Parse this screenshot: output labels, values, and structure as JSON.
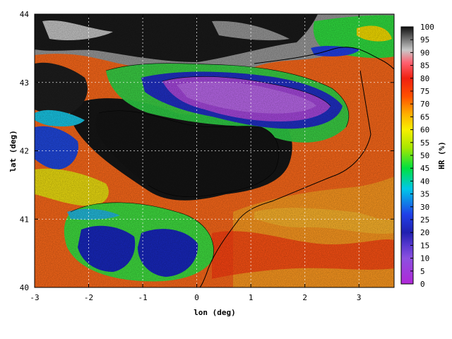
{
  "map": {
    "x_axis": {
      "label": "lon (deg)",
      "ticks": [
        "-3",
        "-2",
        "-1",
        "0",
        "1",
        "2",
        "3"
      ],
      "range": [
        -3,
        3.65
      ]
    },
    "y_axis": {
      "label": "lat (deg)",
      "ticks": [
        "40",
        "41",
        "42",
        "43",
        "44"
      ],
      "range": [
        40,
        44
      ]
    },
    "grid": "dotted, at integer degrees",
    "colorbar": {
      "label": "HR (%)",
      "ticks": [
        "0",
        "5",
        "10",
        "15",
        "20",
        "25",
        "30",
        "35",
        "40",
        "45",
        "50",
        "55",
        "60",
        "65",
        "70",
        "75",
        "80",
        "85",
        "90",
        "95",
        "100"
      ],
      "range": [
        0,
        100
      ],
      "colors": [
        "#b028d8",
        "#8c50e0",
        "#5838d0",
        "#2020b0",
        "#2040e8",
        "#00c8e8",
        "#00e040",
        "#a8e800",
        "#f8f000",
        "#ffb000",
        "#ff5000",
        "#f02010",
        "#ff6070",
        "#c8c8c8",
        "#101010"
      ]
    }
  }
}
